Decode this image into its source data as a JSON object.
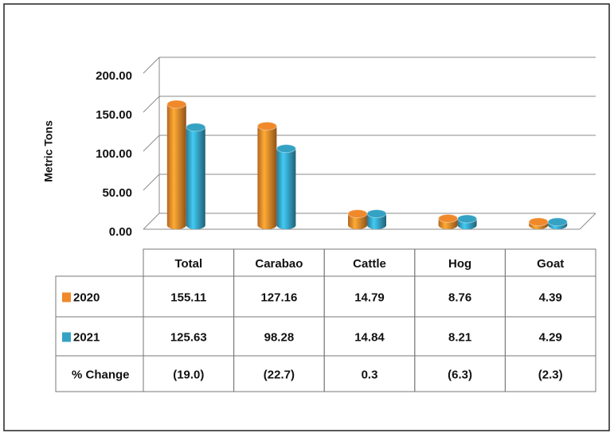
{
  "chart_data": {
    "type": "bar3d",
    "y_label": "Metric Tons",
    "categories": [
      "Total",
      "Carabao",
      "Cattle",
      "Hog",
      "Goat"
    ],
    "series": [
      {
        "name": "2020",
        "color": "#f0892a",
        "values": [
          155.11,
          127.16,
          14.79,
          8.76,
          4.39
        ]
      },
      {
        "name": "2021",
        "color": "#35a2c4",
        "values": [
          125.63,
          98.28,
          14.84,
          8.21,
          4.29
        ]
      }
    ],
    "change": {
      "name": "% Change",
      "values": [
        -19.0,
        -22.7,
        0.3,
        -6.3,
        -2.3
      ],
      "value_labels": [
        "(19.0)",
        "(22.7)",
        "0.3",
        "(6.3)",
        "(2.3)"
      ]
    },
    "ylim": [
      0,
      200
    ],
    "yticks": [
      {
        "value": 0,
        "label": "0.00"
      },
      {
        "value": 50,
        "label": "50.00"
      },
      {
        "value": 100,
        "label": "100.00"
      },
      {
        "value": 150,
        "label": "150.00"
      },
      {
        "value": 200,
        "label": "200.00"
      }
    ],
    "grid": true
  }
}
